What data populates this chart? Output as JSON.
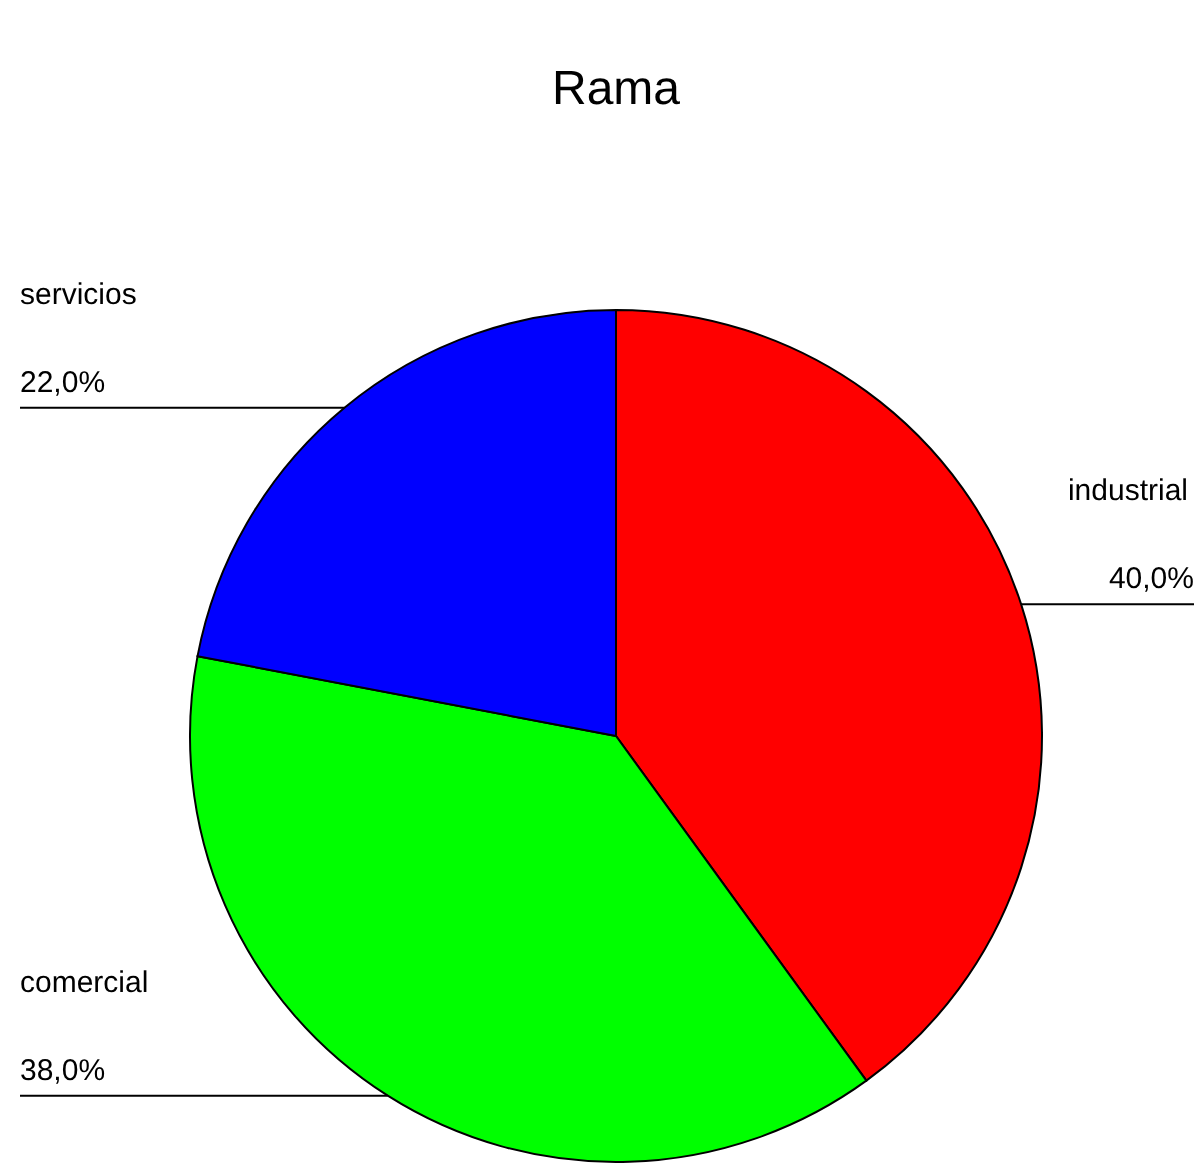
{
  "chart_data": {
    "type": "pie",
    "title": "Rama",
    "categories": [
      "industrial",
      "comercial",
      "servicios"
    ],
    "values": [
      40,
      38,
      22
    ],
    "colors": [
      "#ff0000",
      "#00ff00",
      "#0000ff"
    ],
    "value_labels": [
      "40,0%",
      "38,0%",
      "22,0%"
    ],
    "legend": false
  }
}
